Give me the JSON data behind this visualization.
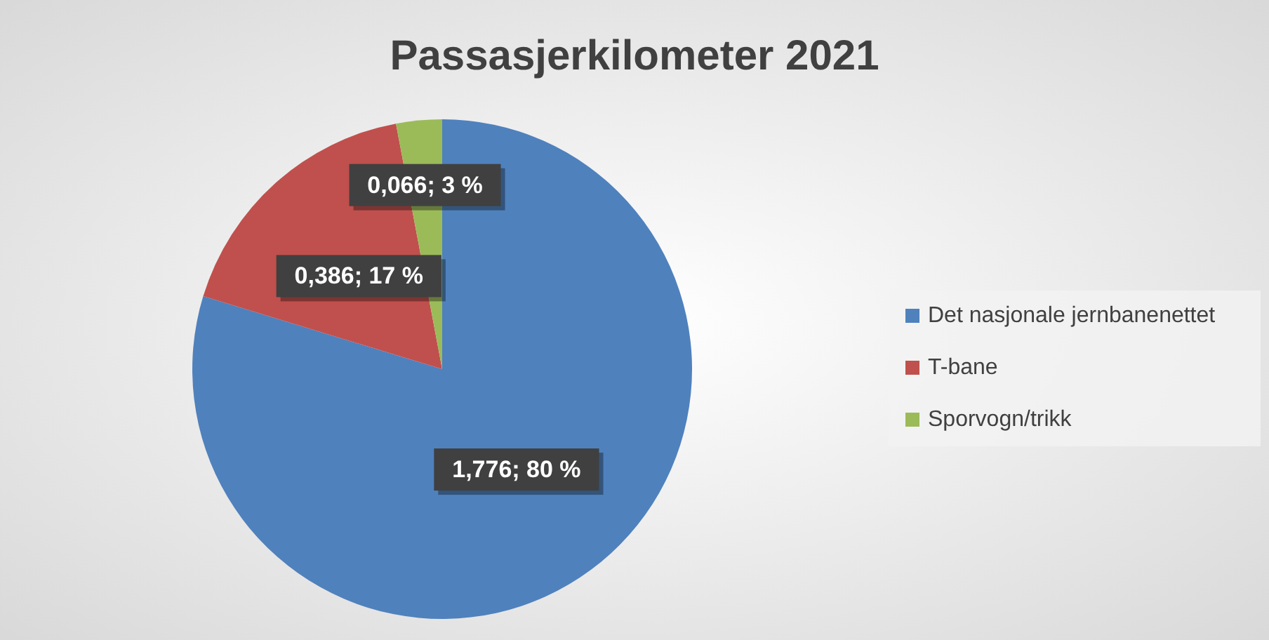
{
  "chart_data": {
    "type": "pie",
    "title": "Passasjerkilometer 2021",
    "categories": [
      "Det nasjonale jernbanenettet",
      "T-bane",
      "Sporvogn/trikk"
    ],
    "values": [
      1.776,
      0.386,
      0.066
    ],
    "colors": [
      "#4f81bd",
      "#c0504d",
      "#9bbb59"
    ],
    "value_labels": [
      "1,776; 80 %",
      "0,386; 17 %",
      "0,066; 3 %"
    ],
    "legend": "right"
  }
}
